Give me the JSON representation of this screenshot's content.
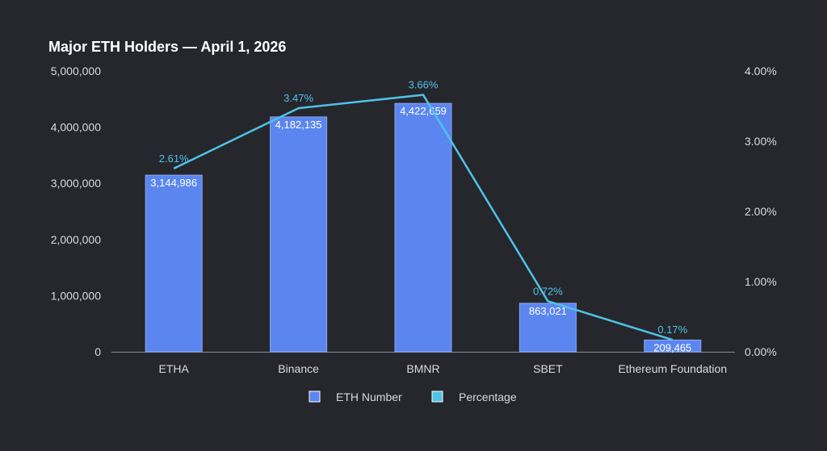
{
  "chart_data": {
    "type": "bar",
    "title": "Major ETH Holders — April 1, 2026",
    "categories": [
      "ETHA",
      "Binance",
      "BMNR",
      "SBET",
      "Ethereum Foundation"
    ],
    "series": [
      {
        "name": "ETH Number",
        "type": "bar",
        "axis": "left",
        "values": [
          3144986,
          4182135,
          4422659,
          863021,
          209465
        ],
        "labels": [
          "3,144,986",
          "4,182,135",
          "4,422,659",
          "863,021",
          "209,465"
        ]
      },
      {
        "name": "Percentage",
        "type": "line",
        "axis": "right",
        "values": [
          2.61,
          3.47,
          3.66,
          0.72,
          0.17
        ],
        "labels": [
          "2.61%",
          "3.47%",
          "3.66%",
          "0.72%",
          "0.17%"
        ]
      }
    ],
    "y_left": {
      "min": 0,
      "max": 5000000,
      "ticks": [
        0,
        1000000,
        2000000,
        3000000,
        4000000,
        5000000
      ],
      "tick_labels": [
        "0",
        "1,000,000",
        "2,000,000",
        "3,000,000",
        "4,000,000",
        "5,000,000"
      ]
    },
    "y_right": {
      "min": 0,
      "max": 4,
      "ticks": [
        0,
        1,
        2,
        3,
        4
      ],
      "tick_labels": [
        "0.00%",
        "1.00%",
        "2.00%",
        "3.00%",
        "4.00%"
      ]
    },
    "grid": false,
    "legend_position": "bottom-center",
    "colors": {
      "background": "#25272d",
      "bar": "#5b86f0",
      "bar_stroke": "#8aa8f5",
      "line": "#4fc3e6",
      "text": "#ffffff",
      "muted_text": "#d9dbe0",
      "axis": "#8a8d95"
    }
  }
}
